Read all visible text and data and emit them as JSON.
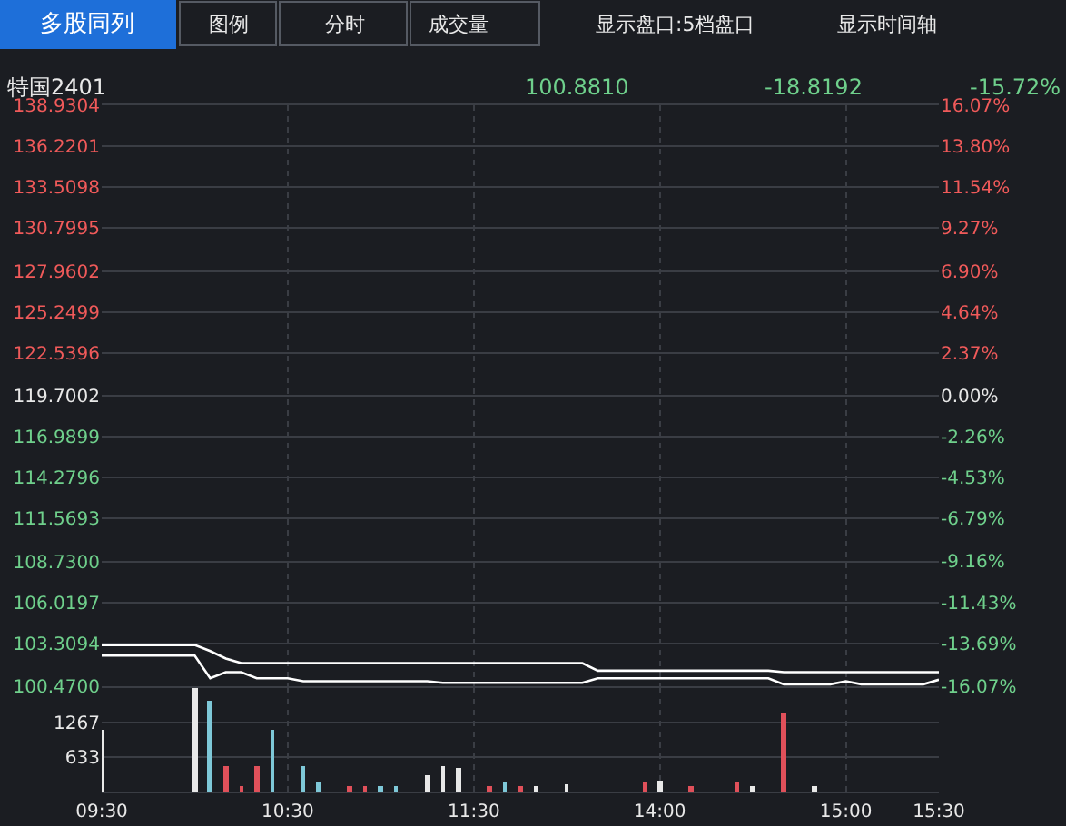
{
  "chart_data": [
    {
      "type": "line",
      "title": "特国2401",
      "annotations": [
        "100.8810",
        "-18.8192",
        "-15.72%",
        "多股同列",
        "图例",
        "分时",
        "成交量",
        "显示盘口:5档盘口",
        "显示时间轴"
      ],
      "categories": [
        null,
        null,
        null,
        null,
        null,
        null,
        null,
        null,
        null,
        null,
        null,
        null,
        null,
        null,
        null,
        null,
        null,
        null,
        null,
        null,
        null,
        null,
        null,
        null,
        null,
        null,
        null,
        null,
        null,
        null,
        null,
        null,
        null,
        null,
        null,
        null,
        null,
        null,
        null,
        null,
        null,
        null,
        null,
        null,
        null,
        null,
        null,
        null,
        null,
        null,
        null,
        null,
        null,
        null,
        null
      ],
      "ylim": [
        100.47,
        138.9304
      ],
      "yticks": [
        {
          "value": 100.47,
          "label": "100.4700"
        },
        {
          "value": 103.3094,
          "label": "103.3094"
        },
        {
          "value": 106.0197,
          "label": "106.0197"
        },
        {
          "value": 108.73,
          "label": "108.7300"
        },
        {
          "value": 111.5693,
          "label": "111.5693"
        },
        {
          "value": 114.2796,
          "label": "114.2796"
        },
        {
          "value": 116.9899,
          "label": "116.9899"
        },
        {
          "value": 119.7002,
          "label": "119.7002"
        },
        {
          "value": 122.5396,
          "label": "122.5396"
        },
        {
          "value": 125.2499,
          "label": "125.2499"
        },
        {
          "value": 127.9602,
          "label": "127.9602"
        },
        {
          "value": 130.7995,
          "label": "130.7995"
        },
        {
          "value": 133.5098,
          "label": "133.5098"
        },
        {
          "value": 136.2201,
          "label": "136.2201"
        },
        {
          "value": 138.9304,
          "label": "138.9304"
        }
      ],
      "y2lim": [
        -16.07,
        16.07
      ],
      "y2ticks": [
        {
          "value": -16.07,
          "label": "-16.07%"
        },
        {
          "value": -13.69,
          "label": "-13.69%"
        },
        {
          "value": -11.43,
          "label": "-11.43%"
        },
        {
          "value": -9.16,
          "label": "-9.16%"
        },
        {
          "value": -6.79,
          "label": "-6.79%"
        },
        {
          "value": -4.53,
          "label": "-4.53%"
        },
        {
          "value": -2.26,
          "label": "-2.26%"
        },
        {
          "value": 0,
          "label": "0.00%"
        },
        {
          "value": 2.37,
          "label": "2.37%"
        },
        {
          "value": 4.64,
          "label": "4.64%"
        },
        {
          "value": 6.9,
          "label": "6.90%"
        },
        {
          "value": 9.27,
          "label": "9.27%"
        },
        {
          "value": 11.54,
          "label": "11.54%"
        },
        {
          "value": 13.8,
          "label": "13.80%"
        },
        {
          "value": 16.07,
          "label": "16.07%"
        }
      ],
      "tick_labels": "y",
      "grid": true,
      "marker": "none",
      "line_style": "solid",
      "series": [
        {
          "color": "#ffffff",
          "values": [
            103.2,
            103.2,
            103.2,
            103.2,
            103.2,
            103.2,
            103.2,
            102.8,
            102.3,
            102.0,
            102.0,
            102.0,
            102.0,
            102.0,
            102.0,
            102.0,
            102.0,
            102.0,
            102.0,
            102.0,
            102.0,
            102.0,
            102.0,
            102.0,
            102.0,
            102.0,
            102.0,
            102.0,
            102.0,
            102.0,
            102.0,
            102.0,
            101.5,
            101.5,
            101.5,
            101.5,
            101.5,
            101.5,
            101.5,
            101.5,
            101.5,
            101.5,
            101.5,
            101.5,
            101.4,
            101.4,
            101.4,
            101.4,
            101.4,
            101.4,
            101.4,
            101.4,
            101.4,
            101.4,
            101.4
          ]
        },
        {
          "color": "#ffffff",
          "values": [
            102.5,
            102.5,
            102.5,
            102.5,
            102.5,
            102.5,
            102.5,
            101.0,
            101.4,
            101.4,
            101.0,
            101.0,
            101.0,
            100.8,
            100.8,
            100.8,
            100.8,
            100.8,
            100.8,
            100.8,
            100.8,
            100.8,
            100.7,
            100.7,
            100.7,
            100.7,
            100.7,
            100.7,
            100.7,
            100.7,
            100.7,
            100.7,
            101.0,
            101.0,
            101.0,
            101.0,
            101.0,
            101.0,
            101.0,
            101.0,
            101.0,
            101.0,
            101.0,
            101.0,
            100.6,
            100.6,
            100.6,
            100.6,
            100.8,
            100.6,
            100.6,
            100.6,
            100.6,
            100.6,
            100.9
          ]
        }
      ]
    },
    {
      "type": "bar",
      "categories": [
        "09:30",
        null,
        null,
        null,
        null,
        null,
        null,
        null,
        null,
        null,
        null,
        null,
        "10:30",
        null,
        null,
        null,
        null,
        null,
        null,
        null,
        null,
        null,
        null,
        null,
        "11:30",
        null,
        null,
        null,
        null,
        null,
        null,
        null,
        null,
        null,
        null,
        null,
        "14:00",
        null,
        null,
        null,
        null,
        null,
        null,
        null,
        null,
        null,
        null,
        null,
        "15:00",
        null,
        null,
        null,
        null,
        null,
        "15:30"
      ],
      "ylim": [
        0,
        1890
      ],
      "yticks": [
        633,
        1267
      ],
      "grid": true,
      "values": [
        1140,
        null,
        null,
        null,
        null,
        null,
        1880,
        1650,
        450,
        100,
        450,
        1140,
        null,
        450,
        150,
        null,
        100,
        100,
        100,
        100,
        null,
        310,
        470,
        430,
        null,
        100,
        150,
        100,
        100,
        null,
        130,
        null,
        null,
        null,
        null,
        150,
        200,
        null,
        100,
        null,
        null,
        150,
        100,
        null,
        1420,
        null,
        100,
        null,
        null,
        null,
        null,
        null,
        null,
        null,
        null
      ],
      "colors": [
        "#e8e8e8",
        "#e8e8e8",
        "#e8e8e8",
        "#e8e8e8",
        "#e8e8e8",
        "#e8e8e8",
        "#e8e8e8",
        "#7ec8d8",
        "#e0505a",
        "#e0505a",
        "#e0505a",
        "#7ec8d8",
        "#e8e8e8",
        "#7ec8d8",
        "#7ec8d8",
        "#e8e8e8",
        "#e0505a",
        "#e0505a",
        "#7ec8d8",
        "#7ec8d8",
        "#e8e8e8",
        "#e8e8e8",
        "#e8e8e8",
        "#e8e8e8",
        "#e8e8e8",
        "#e0505a",
        "#7ec8d8",
        "#e0505a",
        "#e8e8e8",
        "#e8e8e8",
        "#e8e8e8",
        "#e8e8e8",
        "#e8e8e8",
        "#e8e8e8",
        "#e8e8e8",
        "#e0505a",
        "#e8e8e8",
        "#e8e8e8",
        "#e0505a",
        "#e8e8e8",
        "#e8e8e8",
        "#e0505a",
        "#e8e8e8",
        "#e8e8e8",
        "#e0505a",
        "#e8e8e8",
        "#e8e8e8",
        "#e8e8e8",
        "#e8e8e8",
        "#e8e8e8",
        "#e8e8e8",
        "#e8e8e8",
        "#e8e8e8",
        "#e8e8e8",
        "#e8e8e8"
      ]
    }
  ]
}
